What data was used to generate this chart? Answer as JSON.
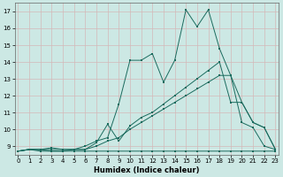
{
  "xlabel": "Humidex (Indice chaleur)",
  "background_color": "#cce8e4",
  "grid_color": "#d4b8b8",
  "line_color": "#1a6b5e",
  "xlim": [
    -0.3,
    23.3
  ],
  "ylim": [
    8.5,
    17.5
  ],
  "xticks": [
    0,
    1,
    2,
    3,
    4,
    5,
    6,
    7,
    8,
    9,
    10,
    11,
    12,
    13,
    14,
    15,
    16,
    17,
    18,
    19,
    20,
    21,
    22,
    23
  ],
  "yticks": [
    9,
    10,
    11,
    12,
    13,
    14,
    15,
    16,
    17
  ],
  "lines": [
    [
      8.7,
      8.8,
      8.7,
      8.7,
      8.7,
      8.7,
      8.7,
      8.7,
      8.7,
      8.7,
      8.7,
      8.7,
      8.7,
      8.7,
      8.7,
      8.7,
      8.7,
      8.7,
      8.7,
      8.7,
      8.7,
      8.7,
      8.7,
      8.7
    ],
    [
      8.7,
      8.8,
      8.8,
      8.8,
      8.8,
      8.8,
      8.8,
      9.0,
      9.3,
      9.5,
      10.0,
      10.4,
      10.8,
      11.2,
      11.6,
      12.0,
      12.4,
      12.8,
      13.2,
      13.2,
      10.4,
      10.1,
      9.0,
      8.8
    ],
    [
      8.7,
      8.8,
      8.8,
      8.7,
      8.7,
      8.8,
      8.8,
      9.2,
      10.3,
      9.3,
      10.2,
      10.7,
      11.0,
      11.5,
      12.0,
      12.5,
      13.0,
      13.5,
      14.0,
      11.6,
      11.6,
      10.4,
      10.1,
      8.8
    ],
    [
      8.7,
      8.8,
      8.8,
      8.9,
      8.8,
      8.8,
      9.0,
      9.3,
      9.5,
      11.5,
      14.1,
      14.1,
      14.5,
      12.8,
      14.1,
      17.1,
      16.1,
      17.1,
      14.8,
      13.2,
      11.6,
      10.4,
      10.1,
      8.8
    ]
  ]
}
